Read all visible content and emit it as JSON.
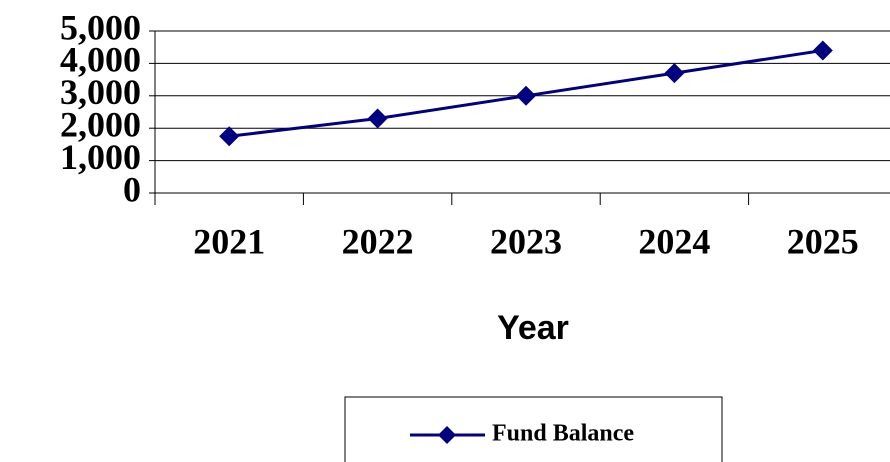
{
  "chart_data": {
    "type": "line",
    "x_label": "Year",
    "categories": [
      "2021",
      "2022",
      "2023",
      "2024",
      "2025"
    ],
    "series": [
      {
        "name": "Fund Balance",
        "color": "#000080",
        "values": [
          1750,
          2300,
          3000,
          3700,
          4400
        ]
      }
    ],
    "ylim": [
      0,
      5000
    ],
    "yticks": [
      0,
      {
        "value": 1000,
        "label": "1,000"
      },
      {
        "value": 2000,
        "label": "2,000"
      },
      {
        "value": 3000,
        "label": "3,000"
      },
      {
        "value": 4000,
        "label": "4,000"
      },
      {
        "value": 5000,
        "label": "5,000"
      }
    ],
    "grid": true,
    "legend": "bottom"
  }
}
